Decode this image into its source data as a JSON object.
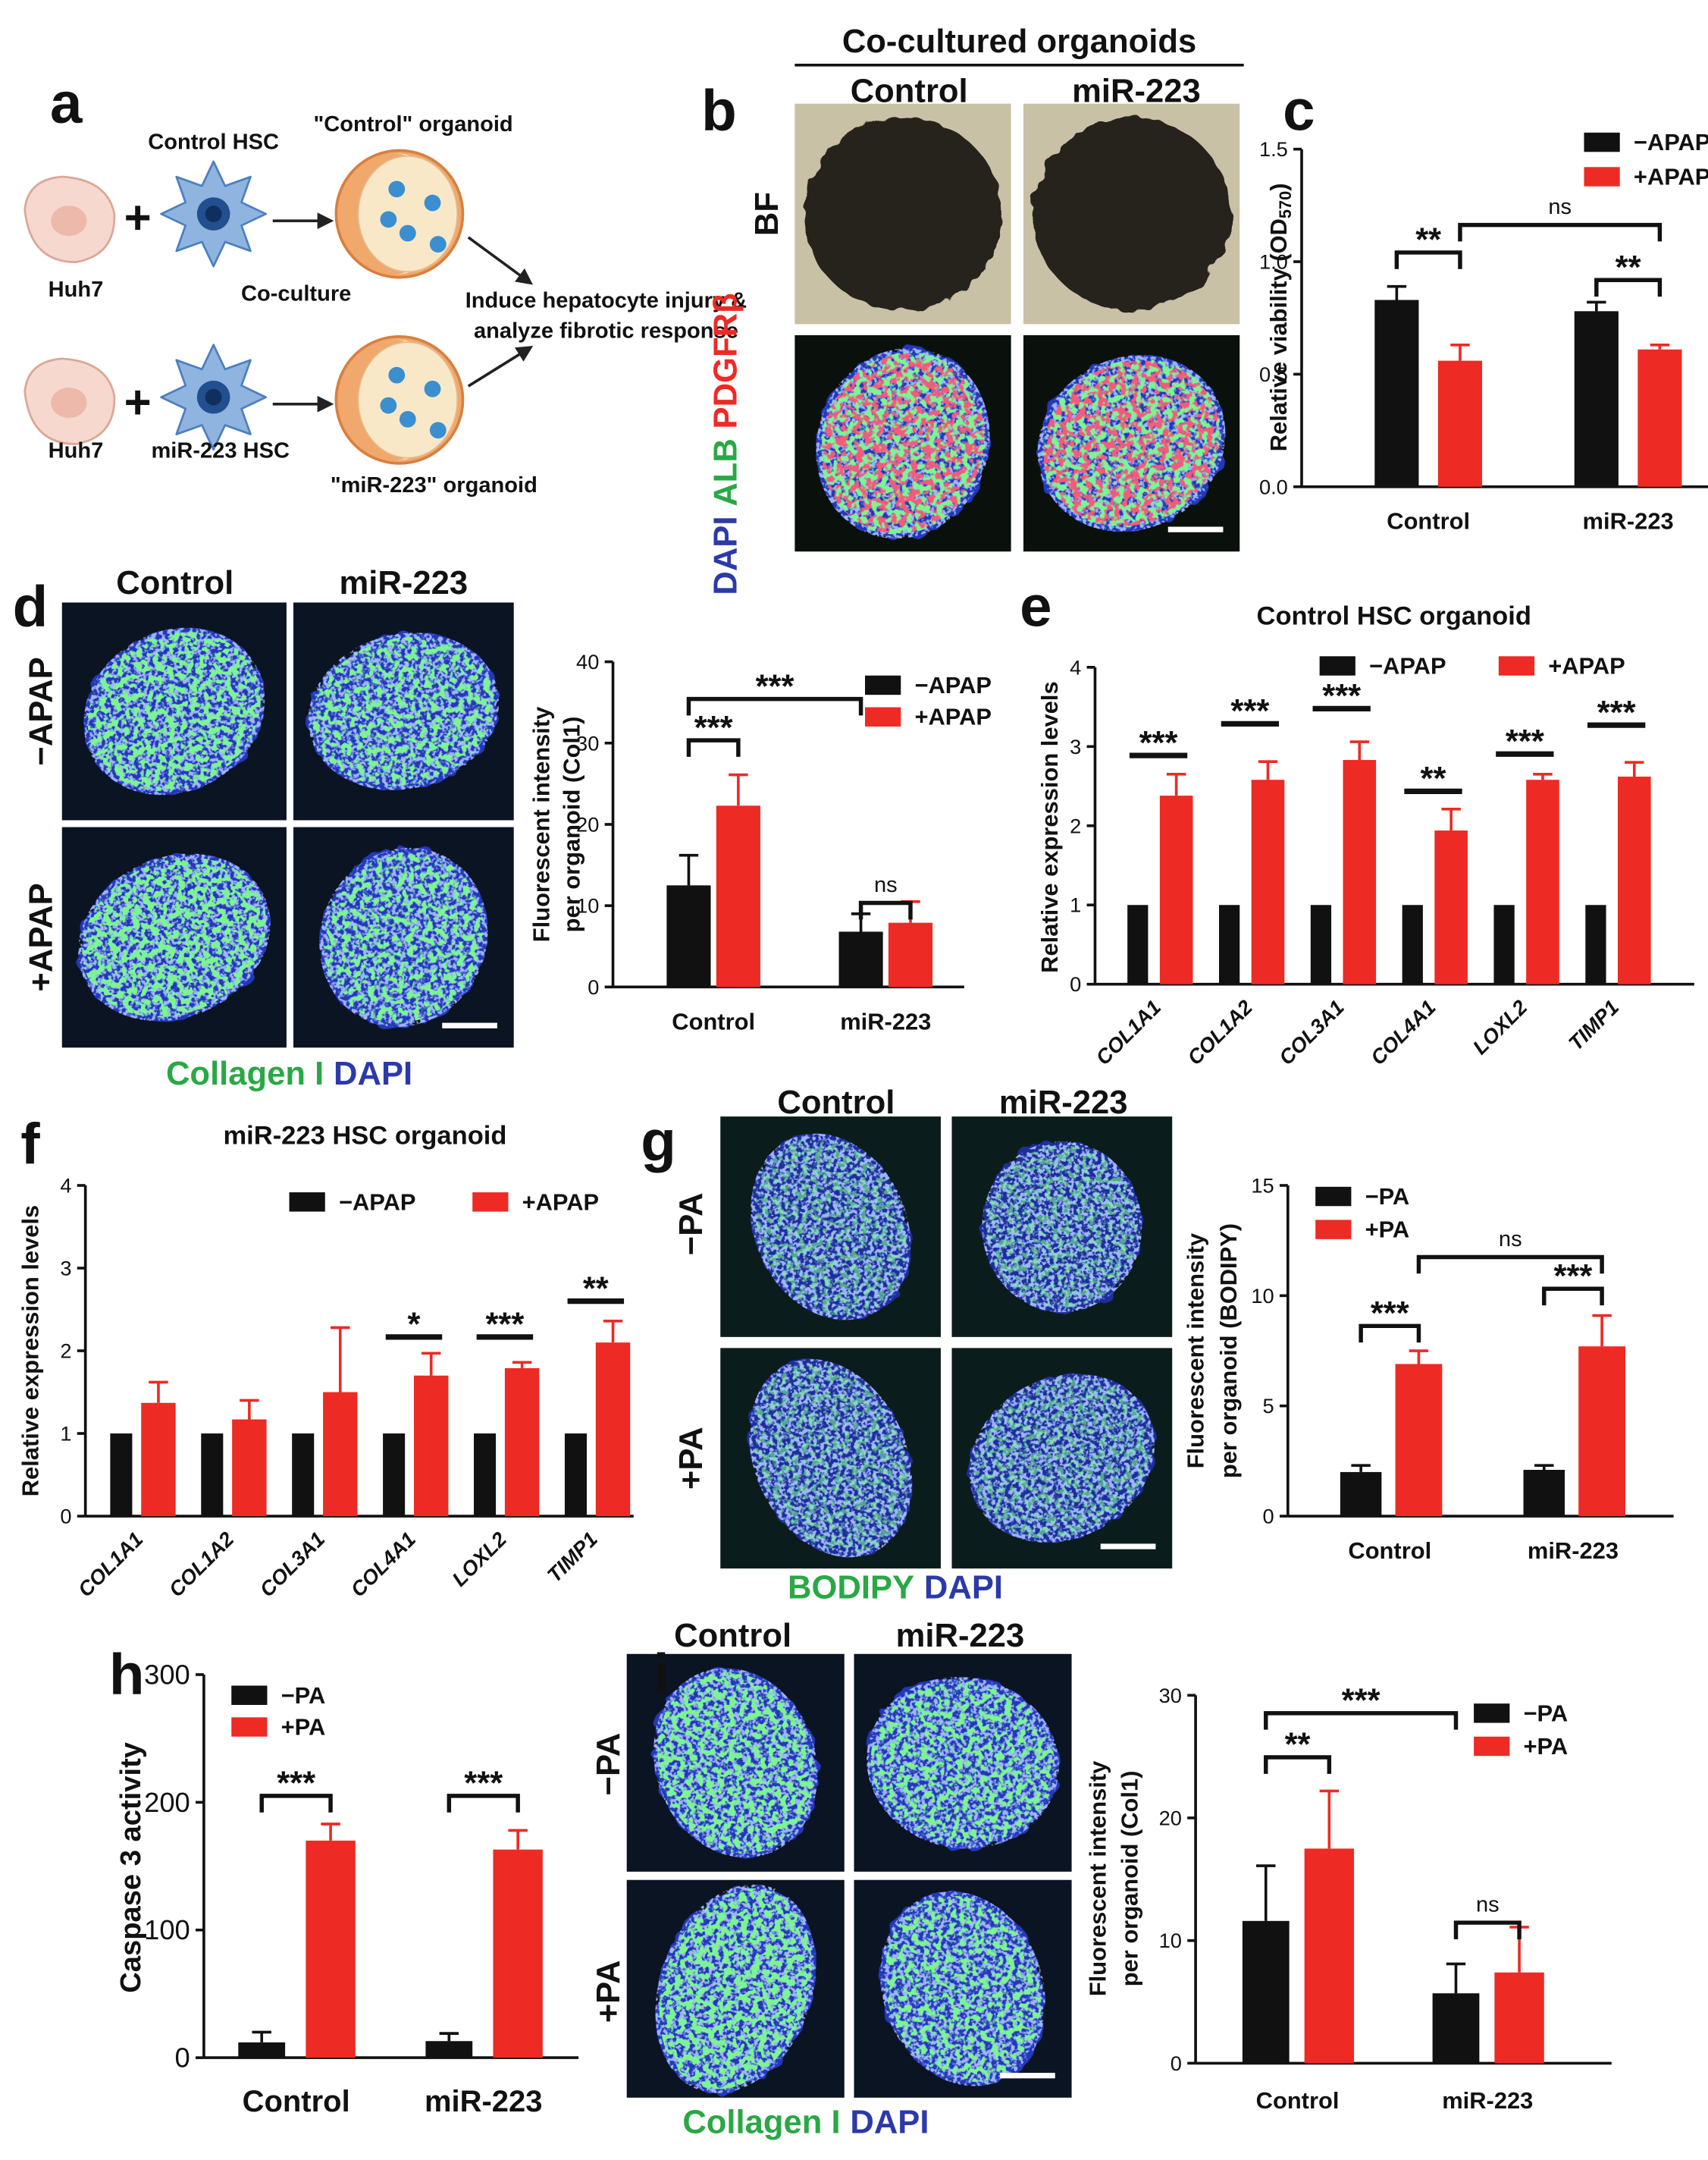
{
  "panel_a": {
    "label": "a",
    "cell_lines": [
      "Huh7",
      "Huh7"
    ],
    "plus": "+",
    "hsc": [
      "Control HSC",
      "miR-223 HSC"
    ],
    "organoids": [
      "\"Control\" organoid",
      "\"miR-223\" organoid"
    ],
    "step": "Co-culture",
    "outcome": [
      "Induce hepatocyte injury &",
      "analyze fibrotic response"
    ]
  },
  "panel_b": {
    "label": "b",
    "title": "Co-cultured organoids",
    "columns": [
      "Control",
      "miR-223"
    ],
    "row": "BF",
    "stain": [
      "DAPI",
      "ALB",
      "PDGFRβ"
    ]
  },
  "panel_d_images": {
    "label": "d",
    "columns": [
      "Control",
      "miR-223"
    ],
    "rows": [
      "−APAP",
      "+APAP"
    ],
    "stain": [
      "Collagen I",
      "DAPI"
    ]
  },
  "panel_g_images": {
    "label": "g",
    "columns": [
      "Control",
      "miR-223"
    ],
    "rows": [
      "−PA",
      "+PA"
    ],
    "stain": [
      "BODIPY",
      "DAPI"
    ]
  },
  "panel_i_images": {
    "label": "i",
    "columns": [
      "Control",
      "miR-223"
    ],
    "rows": [
      "−PA",
      "+PA"
    ],
    "stain": [
      "Collagen I",
      "DAPI"
    ]
  },
  "chart_data": [
    {
      "type": "bar",
      "panel": "c",
      "ylabel": [
        "Relative viability (OD",
        "570",
        ")"
      ],
      "categories": [
        "Control",
        "miR-223"
      ],
      "series": [
        {
          "name": "−APAP",
          "color": "#111111",
          "values": [
            0.83,
            0.78
          ],
          "errors": [
            0.06,
            0.04
          ]
        },
        {
          "name": "+APAP",
          "color": "#ee2a24",
          "values": [
            0.56,
            0.61
          ],
          "errors": [
            0.07,
            0.02
          ]
        }
      ],
      "ylim": [
        0,
        1.5
      ],
      "yticks": [
        {
          "value": 0,
          "label": "0.0"
        },
        0.5,
        {
          "value": 1,
          "label": "1.0"
        },
        1.5
      ],
      "annotations": [
        "**",
        "ns",
        "**"
      ]
    },
    {
      "type": "bar",
      "ylabel": [
        "Fluorescent intensity",
        "per organoid (Col1)"
      ],
      "categories": [
        "Control",
        "miR-223"
      ],
      "series": [
        {
          "name": "−APAP",
          "color": "#111111",
          "values": [
            12.5,
            6.8
          ],
          "errors": [
            3.7,
            2.2
          ]
        },
        {
          "name": "+APAP",
          "color": "#ee2a24",
          "values": [
            22.3,
            7.9
          ],
          "errors": [
            3.8,
            2.6
          ]
        }
      ],
      "ylim": [
        0,
        40
      ],
      "yticks": [
        0,
        10,
        20,
        30,
        40
      ],
      "annotations": [
        "***",
        "***",
        "ns"
      ]
    },
    {
      "type": "bar",
      "panel": "e",
      "title": "Control HSC organoid",
      "ylabel": [
        "Relative expression levels"
      ],
      "categories": [
        "COL1A1",
        "COL1A2",
        "COL3A1",
        "COL4A1",
        "LOXL2",
        "TIMP1"
      ],
      "series": [
        {
          "name": "−APAP",
          "color": "#111111",
          "values": [
            1,
            1,
            1,
            1,
            1,
            1
          ]
        },
        {
          "name": "+APAP",
          "color": "#ee2a24",
          "values": [
            2.38,
            2.58,
            2.83,
            1.94,
            2.58,
            2.62
          ],
          "errors": [
            0.27,
            0.23,
            0.23,
            0.27,
            0.07,
            0.18
          ]
        }
      ],
      "ylim": [
        0,
        4
      ],
      "yticks": [
        0,
        1,
        2,
        3,
        4
      ],
      "annotations": [
        "***",
        "***",
        "***",
        "**",
        "***",
        "***"
      ]
    },
    {
      "type": "bar",
      "panel": "f",
      "title": "miR-223 HSC organoid",
      "ylabel": [
        "Relative expression levels"
      ],
      "categories": [
        "COL1A1",
        "COL1A2",
        "COL3A1",
        "COL4A1",
        "LOXL2",
        "TIMP1"
      ],
      "series": [
        {
          "name": "−APAP",
          "color": "#111111",
          "values": [
            1,
            1,
            1,
            1,
            1,
            1
          ]
        },
        {
          "name": "+APAP",
          "color": "#ee2a24",
          "values": [
            1.37,
            1.17,
            1.5,
            1.7,
            1.79,
            2.1
          ],
          "errors": [
            0.25,
            0.23,
            0.78,
            0.27,
            0.07,
            0.26
          ]
        }
      ],
      "ylim": [
        0,
        4
      ],
      "yticks": [
        0,
        1,
        2,
        3,
        4
      ],
      "annotations": [
        "*",
        "***",
        "**"
      ]
    },
    {
      "type": "bar",
      "ylabel": [
        "Fluorescent intensity",
        "per organoid (BODIPY)"
      ],
      "categories": [
        "Control",
        "miR-223"
      ],
      "series": [
        {
          "name": "−PA",
          "color": "#111111",
          "values": [
            2.0,
            2.1
          ],
          "errors": [
            0.3,
            0.2
          ]
        },
        {
          "name": "+PA",
          "color": "#ee2a24",
          "values": [
            6.9,
            7.7
          ],
          "errors": [
            0.6,
            1.4
          ]
        }
      ],
      "ylim": [
        0,
        15
      ],
      "yticks": [
        0,
        5,
        10,
        15
      ],
      "annotations": [
        "***",
        "ns",
        "***"
      ]
    },
    {
      "type": "bar",
      "panel": "h",
      "ylabel": [
        "Caspase 3 activity"
      ],
      "categories": [
        "Control",
        "miR-223"
      ],
      "series": [
        {
          "name": "−PA",
          "color": "#111111",
          "values": [
            12,
            13
          ],
          "errors": [
            8,
            6
          ]
        },
        {
          "name": "+PA",
          "color": "#ee2a24",
          "values": [
            170,
            163
          ],
          "errors": [
            13,
            15
          ]
        }
      ],
      "ylim": [
        0,
        300
      ],
      "yticks": [
        0,
        100,
        200,
        300
      ],
      "annotations": [
        "***",
        "***"
      ]
    },
    {
      "type": "bar",
      "ylabel": [
        "Fluorescent intensity",
        "per organoid (Col1)"
      ],
      "categories": [
        "Control",
        "miR-223"
      ],
      "series": [
        {
          "name": "−PA",
          "color": "#111111",
          "values": [
            11.6,
            5.7
          ],
          "errors": [
            4.5,
            2.4
          ]
        },
        {
          "name": "+PA",
          "color": "#ee2a24",
          "values": [
            17.5,
            7.4
          ],
          "errors": [
            4.7,
            3.7
          ]
        }
      ],
      "ylim": [
        0,
        30
      ],
      "yticks": [
        0,
        10,
        20,
        30
      ],
      "annotations": [
        "**",
        "***",
        "ns"
      ]
    }
  ]
}
